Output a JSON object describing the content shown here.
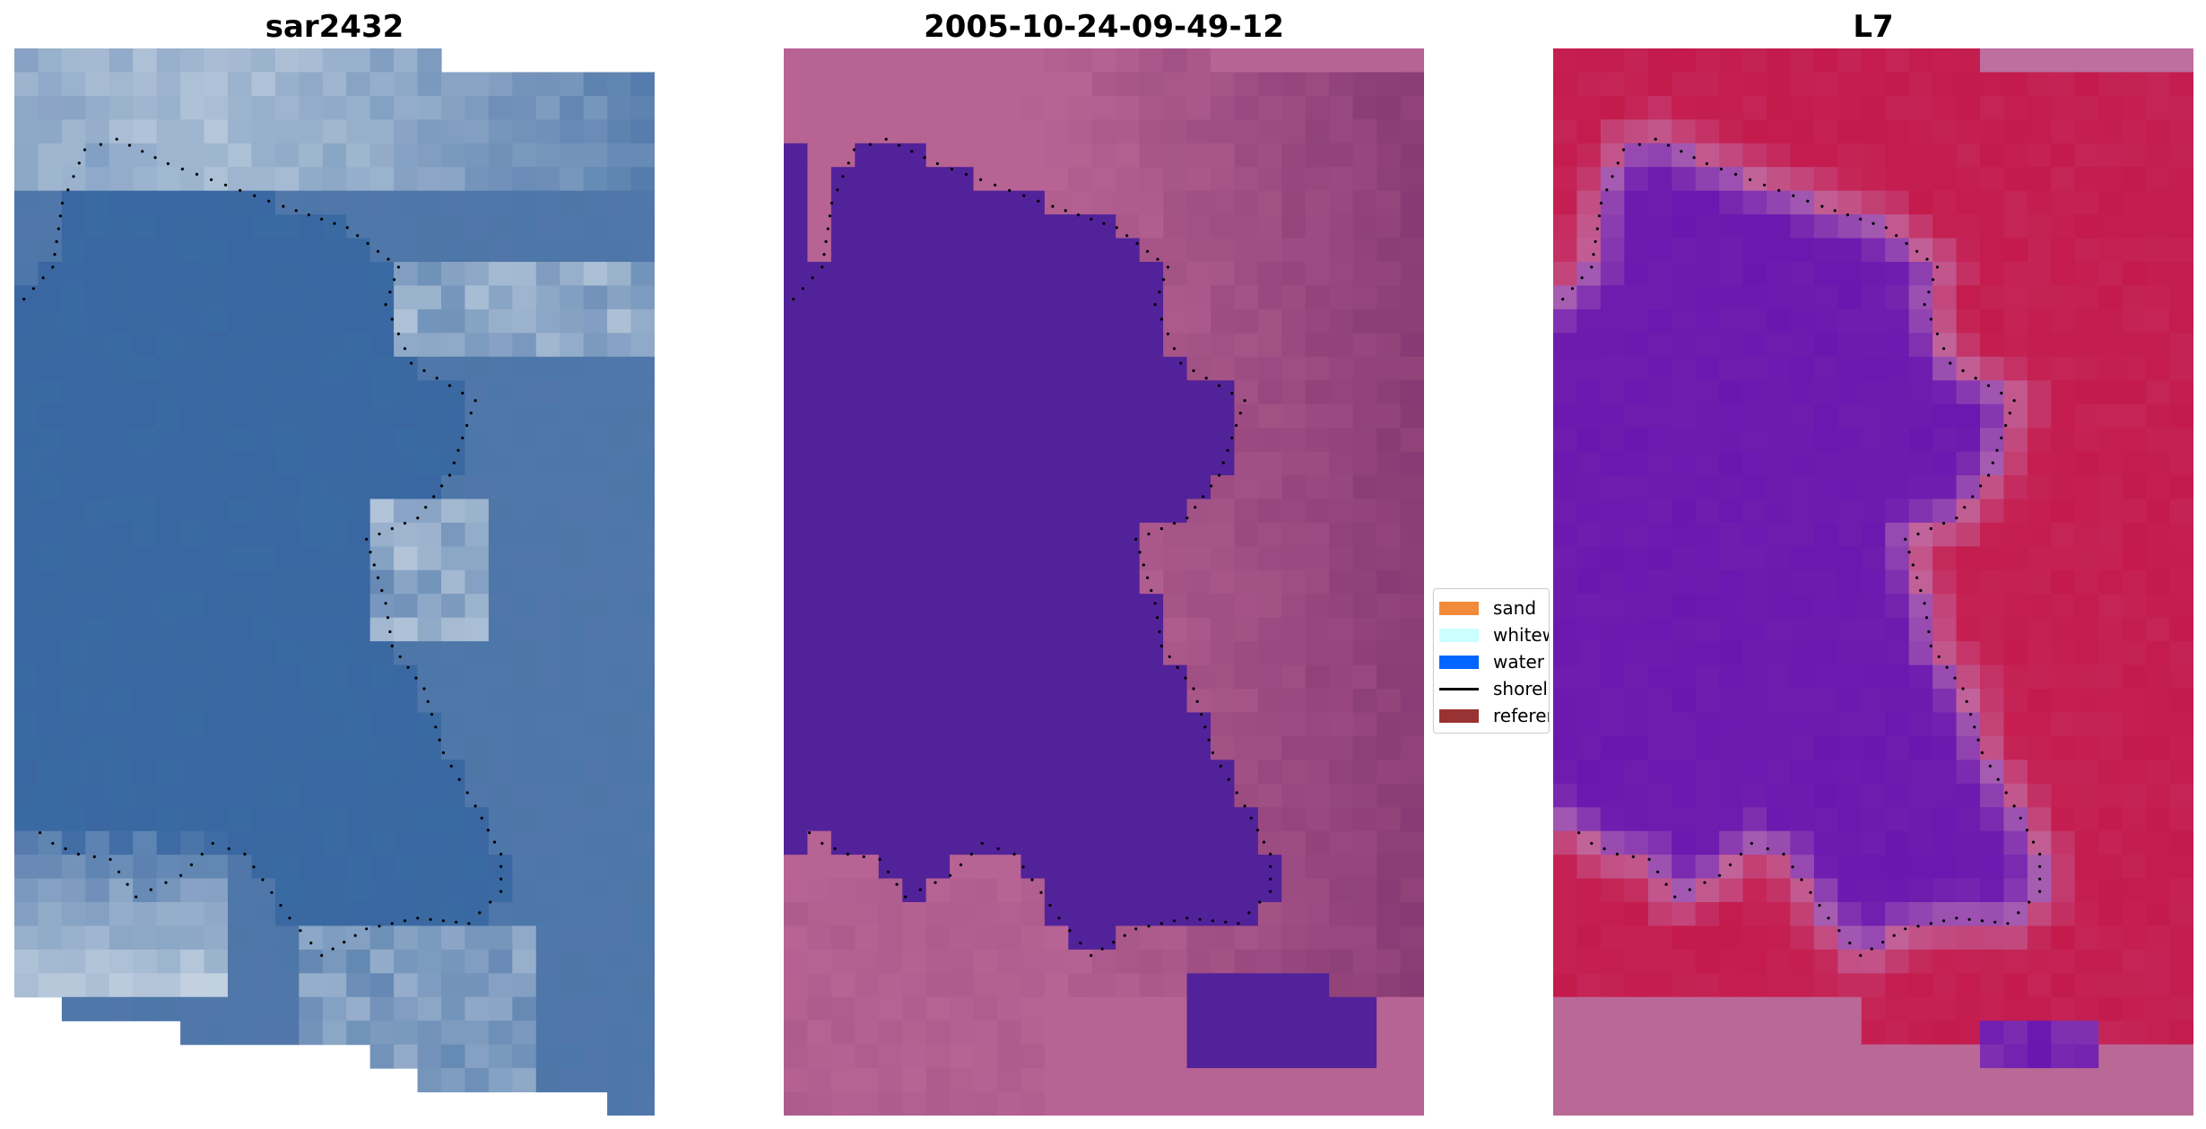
{
  "titles": {
    "left": "sar2432",
    "middle": "2005-10-24-09-49-12",
    "right": "L7"
  },
  "legend": {
    "items": [
      {
        "label": "sand",
        "color": "#f28a3c",
        "kind": "patch"
      },
      {
        "label": "whitewater",
        "color": "#ccffff",
        "kind": "patch"
      },
      {
        "label": "water",
        "color": "#0066ff",
        "kind": "patch"
      },
      {
        "label": "shoreline",
        "color": "#000000",
        "kind": "line"
      },
      {
        "label": "reference",
        "color": "#993333",
        "kind": "patch"
      }
    ]
  },
  "colors": {
    "rgb_water": "#3a66a2",
    "rgb_cloud": "#dfe7ee",
    "classified_water": "#52229a",
    "classified_land": "#b76394",
    "classified_land_dark": "#7a2f6a",
    "mndwi_water": "#6a17b0",
    "mndwi_land": "#c41a4c",
    "mndwi_edge": "#c07ab2"
  }
}
